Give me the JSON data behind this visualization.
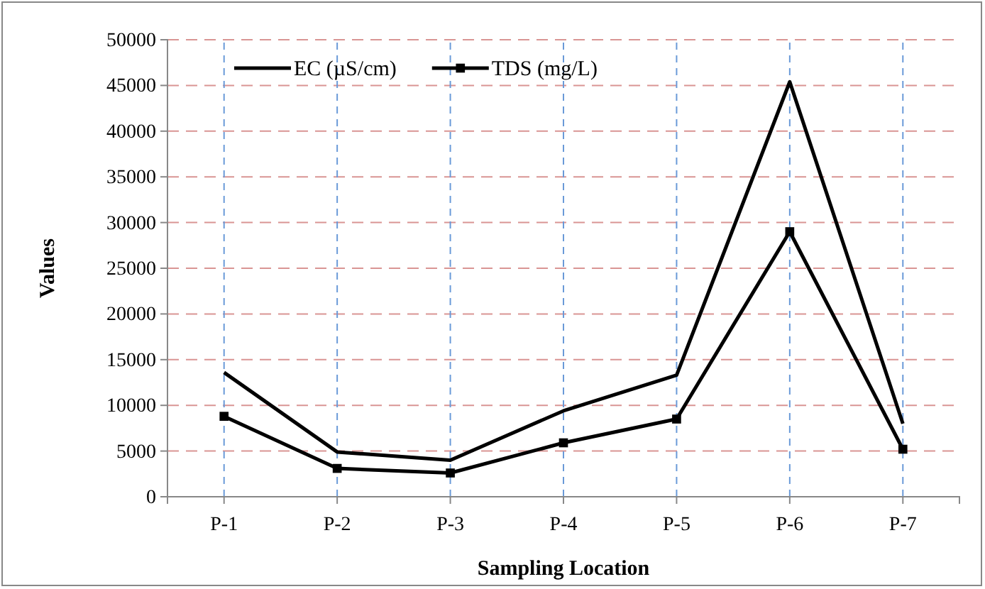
{
  "chart_data": {
    "type": "line",
    "xlabel": "Sampling Location",
    "ylabel": "Values",
    "categories": [
      "P-1",
      "P-2",
      "P-3",
      "P-4",
      "P-5",
      "P-6",
      "P-7"
    ],
    "series": [
      {
        "name": "EC (µS/cm)",
        "color": "#000000",
        "marker": "none",
        "values": [
          13600,
          4900,
          4000,
          9400,
          13300,
          45400,
          8000
        ]
      },
      {
        "name": "TDS (mg/L)",
        "color": "#000000",
        "marker": "square",
        "values": [
          8800,
          3100,
          2600,
          5900,
          8500,
          29000,
          5200
        ]
      }
    ],
    "ylim": [
      0,
      50000
    ],
    "yticks": [
      0,
      5000,
      10000,
      15000,
      20000,
      25000,
      30000,
      35000,
      40000,
      45000,
      50000
    ],
    "grid": true,
    "legend": "top left",
    "line_style": "solid"
  }
}
